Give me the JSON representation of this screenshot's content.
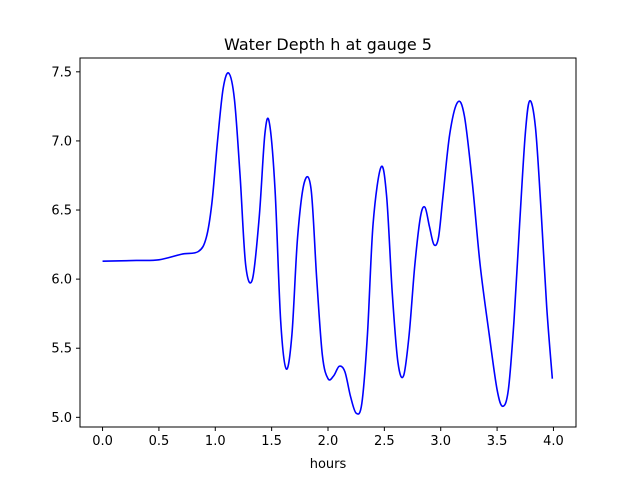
{
  "chart_data": {
    "type": "line",
    "title": "Water Depth h at gauge 5",
    "xlabel": "hours",
    "ylabel": "",
    "xlim": [
      -0.2,
      4.2
    ],
    "ylim": [
      4.93,
      7.6
    ],
    "xticks": [
      0.0,
      0.5,
      1.0,
      1.5,
      2.0,
      2.5,
      3.0,
      3.5,
      4.0
    ],
    "xtick_labels": [
      "0.0",
      "0.5",
      "1.0",
      "1.5",
      "2.0",
      "2.5",
      "3.0",
      "3.5",
      "4.0"
    ],
    "yticks": [
      5.0,
      5.5,
      6.0,
      6.5,
      7.0,
      7.5
    ],
    "ytick_labels": [
      "5.0",
      "5.5",
      "6.0",
      "6.5",
      "7.0",
      "7.5"
    ],
    "grid": false,
    "series": [
      {
        "color": "#0000ff",
        "x": [
          0.0,
          0.3,
          0.5,
          0.7,
          0.85,
          0.92,
          0.97,
          1.02,
          1.07,
          1.12,
          1.17,
          1.22,
          1.27,
          1.33,
          1.39,
          1.44,
          1.48,
          1.53,
          1.58,
          1.63,
          1.68,
          1.73,
          1.79,
          1.85,
          1.9,
          1.95,
          2.0,
          2.05,
          2.1,
          2.15,
          2.2,
          2.25,
          2.3,
          2.35,
          2.4,
          2.47,
          2.52,
          2.57,
          2.62,
          2.67,
          2.72,
          2.77,
          2.82,
          2.86,
          2.9,
          2.94,
          2.98,
          3.02,
          3.08,
          3.15,
          3.21,
          3.28,
          3.35,
          3.43,
          3.5,
          3.55,
          3.6,
          3.65,
          3.7,
          3.75,
          3.79,
          3.84,
          3.89,
          3.94,
          3.99
        ],
        "y": [
          6.13,
          6.135,
          6.14,
          6.18,
          6.2,
          6.3,
          6.55,
          7.0,
          7.38,
          7.49,
          7.3,
          6.75,
          6.1,
          6.0,
          6.45,
          7.05,
          7.13,
          6.65,
          5.7,
          5.35,
          5.6,
          6.3,
          6.7,
          6.65,
          6.0,
          5.45,
          5.28,
          5.3,
          5.37,
          5.33,
          5.15,
          5.03,
          5.1,
          5.6,
          6.4,
          6.81,
          6.6,
          5.9,
          5.4,
          5.3,
          5.6,
          6.1,
          6.45,
          6.52,
          6.38,
          6.25,
          6.3,
          6.6,
          7.05,
          7.28,
          7.18,
          6.7,
          6.1,
          5.6,
          5.2,
          5.08,
          5.2,
          5.7,
          6.4,
          7.05,
          7.29,
          7.1,
          6.5,
          5.8,
          5.28
        ]
      }
    ]
  }
}
